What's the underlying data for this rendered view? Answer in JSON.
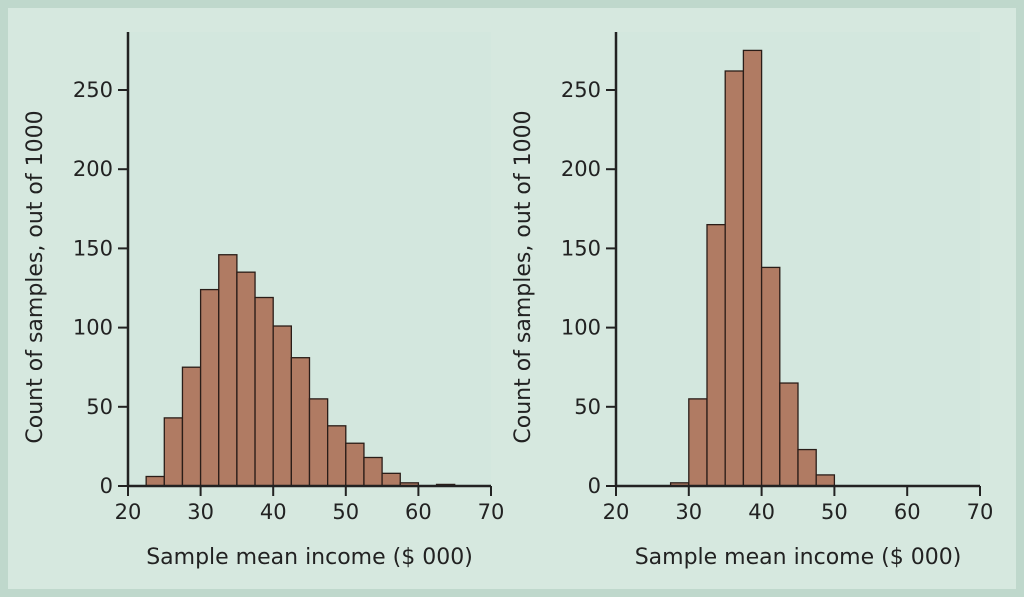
{
  "colors": {
    "frame": "#bfd8cc",
    "panel": "#d6e8df",
    "plot_area": "#d3e7de",
    "bar_fill": "#b07b63",
    "bar_edge": "#2a1d18",
    "axis": "#222222"
  },
  "chart_data": [
    {
      "type": "bar",
      "xlabel": "Sample mean income ($ 000)",
      "ylabel": "Count of samples, out of 1000",
      "xlim": [
        20,
        70
      ],
      "ylim": [
        0,
        285
      ],
      "xticks": [
        20,
        30,
        40,
        50,
        60,
        70
      ],
      "yticks": [
        0,
        50,
        100,
        150,
        200,
        250
      ],
      "bin_width": 2.5,
      "bin_starts": [
        22.5,
        25,
        27.5,
        30,
        32.5,
        35,
        37.5,
        40,
        42.5,
        45,
        47.5,
        50,
        52.5,
        55,
        57.5,
        60,
        62.5
      ],
      "values": [
        6,
        43,
        75,
        124,
        146,
        135,
        119,
        101,
        81,
        55,
        38,
        27,
        18,
        8,
        2,
        0,
        1
      ],
      "grid": false
    },
    {
      "type": "bar",
      "xlabel": "Sample mean income ($ 000)",
      "ylabel": "Count of samples, out of 1000",
      "xlim": [
        20,
        70
      ],
      "ylim": [
        0,
        285
      ],
      "xticks": [
        20,
        30,
        40,
        50,
        60,
        70
      ],
      "yticks": [
        0,
        50,
        100,
        150,
        200,
        250
      ],
      "bin_width": 2.5,
      "bin_starts": [
        27.5,
        30,
        32.5,
        35,
        37.5,
        40,
        42.5,
        45,
        47.5
      ],
      "values": [
        2,
        55,
        165,
        262,
        275,
        138,
        65,
        23,
        7
      ],
      "grid": false
    }
  ]
}
